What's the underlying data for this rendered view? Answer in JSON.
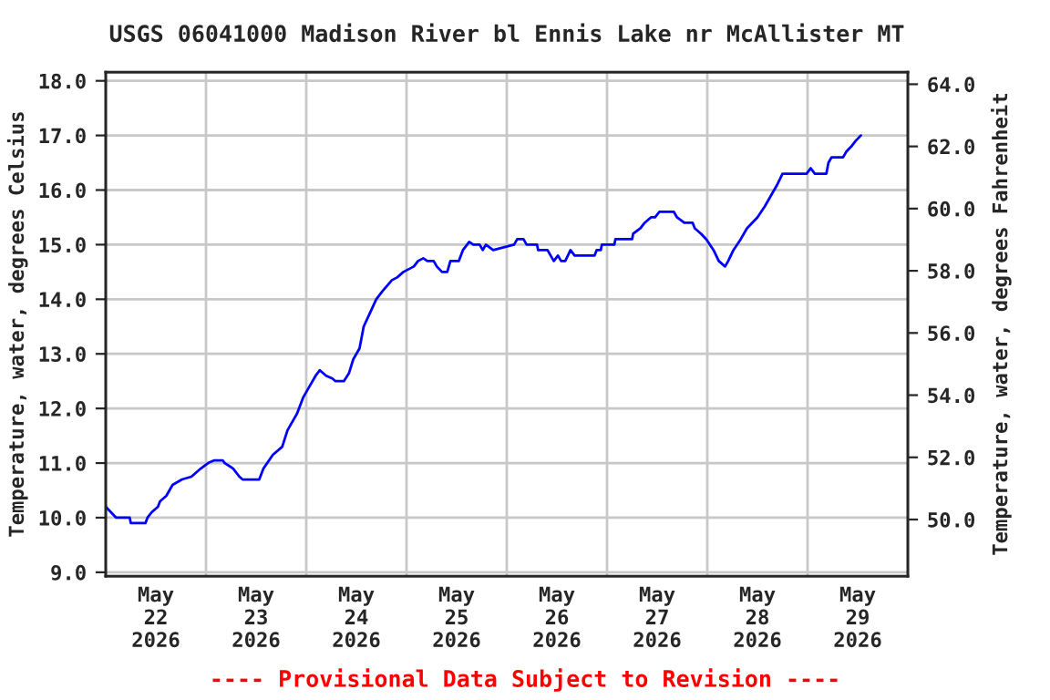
{
  "chart_data": {
    "type": "line",
    "title": "USGS 06041000 Madison River bl Ennis Lake nr McAllister MT",
    "ylabel": "Temperature, water, degrees Celsius",
    "y2label": "Temperature, water, degrees Fahrenheit",
    "annotations": [
      "---- Provisional Data Subject to Revision ----"
    ],
    "x": [
      "2026-05-22T00:00",
      "2026-05-22T02:30",
      "2026-05-22T05:45",
      "2026-05-22T06:00",
      "2026-05-22T09:30",
      "2026-05-22T10:00",
      "2026-05-22T11:00",
      "2026-05-22T12:30",
      "2026-05-22T13:00",
      "2026-05-22T14:30",
      "2026-05-22T16:00",
      "2026-05-22T18:15",
      "2026-05-22T20:30",
      "2026-05-22T22:45",
      "2026-05-23T00:30",
      "2026-05-23T02:00",
      "2026-05-23T04:00",
      "2026-05-23T04:30",
      "2026-05-23T06:30",
      "2026-05-23T08:00",
      "2026-05-23T08:45",
      "2026-05-23T12:45",
      "2026-05-23T13:45",
      "2026-05-23T16:00",
      "2026-05-23T18:15",
      "2026-05-23T19:30",
      "2026-05-23T21:45",
      "2026-05-23T23:15",
      "2026-05-24T00:45",
      "2026-05-24T02:15",
      "2026-05-24T03:15",
      "2026-05-24T04:45",
      "2026-05-24T06:15",
      "2026-05-24T07:00",
      "2026-05-24T09:00",
      "2026-05-24T10:15",
      "2026-05-24T11:15",
      "2026-05-24T12:45",
      "2026-05-24T13:45",
      "2026-05-24T15:15",
      "2026-05-24T16:45",
      "2026-05-24T18:15",
      "2026-05-24T20:30",
      "2026-05-24T21:45",
      "2026-05-24T23:15",
      "2026-05-25T01:45",
      "2026-05-25T02:45",
      "2026-05-25T04:00",
      "2026-05-25T05:00",
      "2026-05-25T06:30",
      "2026-05-25T07:15",
      "2026-05-25T08:30",
      "2026-05-25T09:45",
      "2026-05-25T10:30",
      "2026-05-25T12:30",
      "2026-05-25T13:30",
      "2026-05-25T15:00",
      "2026-05-25T16:00",
      "2026-05-25T17:30",
      "2026-05-25T18:15",
      "2026-05-25T19:00",
      "2026-05-25T20:45",
      "2026-05-26T01:45",
      "2026-05-26T02:30",
      "2026-05-26T04:00",
      "2026-05-26T04:45",
      "2026-05-26T07:15",
      "2026-05-26T07:30",
      "2026-05-26T09:45",
      "2026-05-26T10:30",
      "2026-05-26T11:15",
      "2026-05-26T12:15",
      "2026-05-26T13:00",
      "2026-05-26T14:00",
      "2026-05-26T15:15",
      "2026-05-26T16:15",
      "2026-05-26T21:00",
      "2026-05-26T21:30",
      "2026-05-26T22:30",
      "2026-05-26T22:45",
      "2026-05-27T01:45",
      "2026-05-27T02:00",
      "2026-05-27T06:00",
      "2026-05-27T06:15",
      "2026-05-27T08:00",
      "2026-05-27T09:00",
      "2026-05-27T10:30",
      "2026-05-27T11:30",
      "2026-05-27T12:30",
      "2026-05-27T16:00",
      "2026-05-27T16:45",
      "2026-05-27T18:30",
      "2026-05-27T20:30",
      "2026-05-27T21:00",
      "2026-05-27T22:30",
      "2026-05-27T23:45",
      "2026-05-28T01:30",
      "2026-05-28T02:45",
      "2026-05-28T04:15",
      "2026-05-28T05:00",
      "2026-05-28T06:15",
      "2026-05-28T08:00",
      "2026-05-28T09:30",
      "2026-05-28T10:45",
      "2026-05-28T12:00",
      "2026-05-28T13:45",
      "2026-05-28T15:15",
      "2026-05-28T16:45",
      "2026-05-28T18:00",
      "2026-05-28T23:45",
      "2026-05-29T00:45",
      "2026-05-29T01:45",
      "2026-05-29T04:30",
      "2026-05-29T05:00",
      "2026-05-29T05:45",
      "2026-05-29T08:30",
      "2026-05-29T09:15",
      "2026-05-29T10:30",
      "2026-05-29T11:30",
      "2026-05-29T12:45"
    ],
    "series": [
      {
        "color": "#0000ff",
        "values": [
          10.2,
          10.0,
          10.0,
          9.9,
          9.9,
          10.0,
          10.1,
          10.2,
          10.3,
          10.4,
          10.6,
          10.7,
          10.75,
          10.9,
          11.0,
          11.05,
          11.05,
          11.0,
          10.9,
          10.75,
          10.7,
          10.7,
          10.9,
          11.15,
          11.3,
          11.6,
          11.9,
          12.2,
          12.4,
          12.6,
          12.7,
          12.6,
          12.55,
          12.5,
          12.5,
          12.65,
          12.9,
          13.1,
          13.5,
          13.75,
          14.0,
          14.15,
          14.35,
          14.4,
          14.5,
          14.6,
          14.7,
          14.75,
          14.7,
          14.7,
          14.6,
          14.5,
          14.5,
          14.7,
          14.7,
          14.9,
          15.05,
          15.0,
          15.0,
          14.9,
          15.0,
          14.9,
          15.0,
          15.1,
          15.1,
          15.0,
          15.0,
          14.9,
          14.9,
          14.8,
          14.7,
          14.8,
          14.7,
          14.7,
          14.9,
          14.8,
          14.8,
          14.9,
          14.9,
          15.0,
          15.0,
          15.1,
          15.1,
          15.2,
          15.3,
          15.4,
          15.5,
          15.5,
          15.6,
          15.6,
          15.5,
          15.4,
          15.4,
          15.3,
          15.2,
          15.1,
          14.9,
          14.7,
          14.6,
          14.7,
          14.9,
          15.1,
          15.3,
          15.4,
          15.5,
          15.7,
          15.9,
          16.1,
          16.3,
          16.3,
          16.4,
          16.3,
          16.3,
          16.5,
          16.6,
          16.6,
          16.7,
          16.8,
          16.9,
          17.0
        ]
      }
    ],
    "xlim": [
      "2026-05-22T00:00",
      "2026-05-30T00:00"
    ],
    "xticks": [
      {
        "value": "2026-05-22T12:00",
        "label": "May\n22\n2026"
      },
      {
        "value": "2026-05-23T12:00",
        "label": "May\n23\n2026"
      },
      {
        "value": "2026-05-24T12:00",
        "label": "May\n24\n2026"
      },
      {
        "value": "2026-05-25T12:00",
        "label": "May\n25\n2026"
      },
      {
        "value": "2026-05-26T12:00",
        "label": "May\n26\n2026"
      },
      {
        "value": "2026-05-27T12:00",
        "label": "May\n27\n2026"
      },
      {
        "value": "2026-05-28T12:00",
        "label": "May\n28\n2026"
      },
      {
        "value": "2026-05-29T12:00",
        "label": "May\n29\n2026"
      },
      {
        "value": "2026-05-23T00:00",
        "label": null
      },
      {
        "value": "2026-05-24T00:00",
        "label": null
      },
      {
        "value": "2026-05-25T00:00",
        "label": null
      },
      {
        "value": "2026-05-26T00:00",
        "label": null
      },
      {
        "value": "2026-05-27T00:00",
        "label": null
      },
      {
        "value": "2026-05-28T00:00",
        "label": null
      },
      {
        "value": "2026-05-29T00:00",
        "label": null
      }
    ],
    "ylim": [
      8.93,
      18.16
    ],
    "yticks": [
      {
        "value": 9,
        "label": "9.0"
      },
      {
        "value": 10,
        "label": "10.0"
      },
      {
        "value": 11,
        "label": "11.0"
      },
      {
        "value": 12,
        "label": "12.0"
      },
      {
        "value": 13,
        "label": "13.0"
      },
      {
        "value": 14,
        "label": "14.0"
      },
      {
        "value": 15,
        "label": "15.0"
      },
      {
        "value": 16,
        "label": "16.0"
      },
      {
        "value": 17,
        "label": "17.0"
      },
      {
        "value": 18,
        "label": "18.0"
      }
    ],
    "y2lim": [
      48.18,
      64.39
    ],
    "y2ticks": [
      {
        "value": 50,
        "label": "50.0"
      },
      {
        "value": 52,
        "label": "52.0"
      },
      {
        "value": 54,
        "label": "54.0"
      },
      {
        "value": 56,
        "label": "56.0"
      },
      {
        "value": 58,
        "label": "58.0"
      },
      {
        "value": 60,
        "label": "60.0"
      },
      {
        "value": 62,
        "label": "62.0"
      },
      {
        "value": 64,
        "label": "64.0"
      }
    ],
    "grid": true,
    "legend": false,
    "line_style": "solid",
    "marker": "none"
  }
}
